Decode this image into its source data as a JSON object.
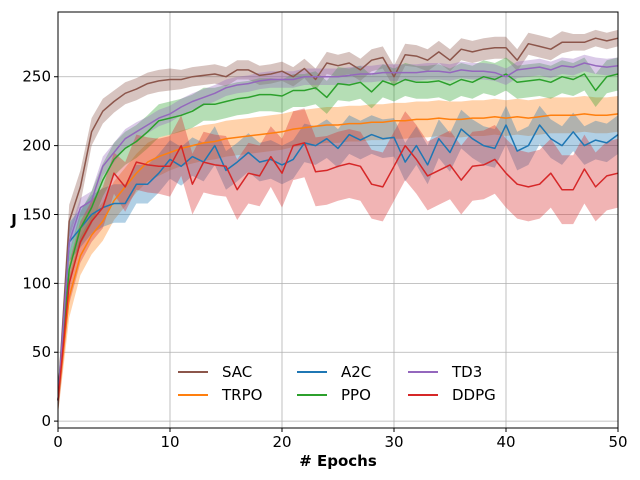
{
  "chart_data": {
    "type": "line",
    "title": "",
    "xlabel": "# Epochs",
    "ylabel": "J",
    "xlim": [
      0,
      50
    ],
    "ylim": [
      -5,
      297
    ],
    "xticks": [
      0,
      10,
      20,
      30,
      40,
      50
    ],
    "yticks": [
      0,
      50,
      100,
      150,
      200,
      250
    ],
    "grid": true,
    "legend": {
      "position": "lower-center",
      "columns": 3
    },
    "x": [
      0,
      1,
      2,
      3,
      4,
      5,
      6,
      7,
      8,
      9,
      10,
      11,
      12,
      13,
      14,
      15,
      16,
      17,
      18,
      19,
      20,
      21,
      22,
      23,
      24,
      25,
      26,
      27,
      28,
      29,
      30,
      31,
      32,
      33,
      34,
      35,
      36,
      37,
      38,
      39,
      40,
      41,
      42,
      43,
      44,
      45,
      46,
      47,
      48,
      49,
      50
    ],
    "series": [
      {
        "name": "SAC",
        "color": "#8c564b",
        "values": [
          15,
          145,
          170,
          210,
          225,
          232,
          238,
          241,
          245,
          247,
          248,
          248,
          250,
          251,
          252,
          250,
          255,
          255,
          251,
          252,
          254,
          250,
          256,
          248,
          260,
          258,
          260,
          255,
          262,
          264,
          250,
          266,
          265,
          262,
          268,
          262,
          270,
          268,
          270,
          271,
          271,
          262,
          274,
          272,
          270,
          275,
          275,
          275,
          278,
          276,
          278
        ],
        "band": [
          10,
          12,
          12,
          10,
          9,
          8,
          8,
          8,
          8,
          8,
          8,
          7,
          7,
          7,
          7,
          7,
          7,
          7,
          7,
          7,
          7,
          7,
          7,
          8,
          8,
          8,
          8,
          8,
          8,
          8,
          8,
          8,
          8,
          8,
          8,
          8,
          8,
          8,
          8,
          8,
          8,
          8,
          8,
          8,
          8,
          8,
          6,
          6,
          6,
          6,
          6
        ]
      },
      {
        "name": "TRPO",
        "color": "#ff7f0e",
        "values": [
          15,
          90,
          120,
          135,
          145,
          160,
          170,
          180,
          188,
          192,
          195,
          198,
          200,
          202,
          203,
          205,
          206,
          207,
          208,
          209,
          210,
          212,
          213,
          214,
          215,
          215,
          216,
          216,
          217,
          217,
          218,
          218,
          219,
          219,
          220,
          219,
          219,
          220,
          220,
          221,
          220,
          221,
          220,
          221,
          222,
          222,
          222,
          223,
          222,
          222,
          223
        ],
        "band": [
          10,
          15,
          14,
          14,
          14,
          14,
          14,
          14,
          14,
          14,
          13,
          13,
          13,
          13,
          13,
          13,
          13,
          13,
          13,
          13,
          13,
          13,
          13,
          13,
          13,
          13,
          13,
          13,
          13,
          13,
          13,
          13,
          13,
          13,
          13,
          13,
          13,
          13,
          13,
          13,
          13,
          13,
          13,
          13,
          13,
          13,
          13,
          13,
          13,
          13,
          13
        ]
      },
      {
        "name": "A2C",
        "color": "#1f77b4",
        "values": [
          15,
          130,
          140,
          150,
          155,
          158,
          158,
          172,
          172,
          180,
          190,
          185,
          192,
          188,
          200,
          182,
          188,
          195,
          188,
          190,
          186,
          190,
          202,
          200,
          205,
          198,
          208,
          204,
          208,
          205,
          206,
          188,
          200,
          186,
          205,
          195,
          212,
          205,
          200,
          198,
          215,
          196,
          200,
          215,
          205,
          200,
          210,
          200,
          204,
          202,
          208
        ],
        "band": [
          10,
          14,
          14,
          14,
          14,
          14,
          14,
          14,
          14,
          14,
          14,
          14,
          14,
          14,
          14,
          14,
          14,
          14,
          14,
          14,
          14,
          14,
          14,
          14,
          14,
          14,
          14,
          14,
          14,
          14,
          14,
          14,
          14,
          14,
          14,
          14,
          14,
          14,
          14,
          14,
          14,
          14,
          14,
          14,
          14,
          14,
          14,
          14,
          14,
          14,
          14
        ]
      },
      {
        "name": "PPO",
        "color": "#2ca02c",
        "values": [
          15,
          110,
          140,
          155,
          175,
          190,
          198,
          203,
          210,
          218,
          220,
          222,
          225,
          230,
          230,
          232,
          234,
          235,
          237,
          237,
          236,
          240,
          240,
          242,
          235,
          245,
          244,
          246,
          239,
          247,
          244,
          248,
          246,
          246,
          247,
          244,
          248,
          246,
          250,
          248,
          252,
          246,
          247,
          248,
          246,
          250,
          248,
          252,
          240,
          250,
          252
        ],
        "band": [
          10,
          12,
          12,
          12,
          12,
          12,
          12,
          12,
          12,
          12,
          12,
          12,
          12,
          12,
          12,
          12,
          12,
          12,
          12,
          12,
          12,
          12,
          12,
          12,
          12,
          12,
          12,
          12,
          12,
          12,
          12,
          12,
          12,
          12,
          12,
          12,
          12,
          12,
          12,
          12,
          12,
          12,
          12,
          12,
          12,
          12,
          12,
          12,
          12,
          12,
          12
        ]
      },
      {
        "name": "TD3",
        "color": "#9467bd",
        "values": [
          15,
          130,
          155,
          160,
          185,
          195,
          205,
          210,
          215,
          220,
          223,
          228,
          232,
          235,
          238,
          242,
          244,
          245,
          247,
          248,
          248,
          248,
          250,
          250,
          250,
          250,
          251,
          252,
          252,
          253,
          253,
          253,
          253,
          254,
          254,
          253,
          255,
          254,
          254,
          253,
          250,
          255,
          256,
          257,
          255,
          258,
          257,
          260,
          258,
          257,
          258
        ],
        "band": [
          10,
          8,
          7,
          7,
          7,
          7,
          7,
          7,
          6,
          6,
          6,
          6,
          6,
          6,
          6,
          6,
          6,
          6,
          6,
          6,
          6,
          6,
          6,
          6,
          6,
          6,
          6,
          6,
          6,
          6,
          6,
          6,
          6,
          6,
          6,
          6,
          6,
          6,
          6,
          6,
          6,
          6,
          6,
          6,
          6,
          6,
          6,
          6,
          6,
          6,
          6
        ]
      },
      {
        "name": "DDPG",
        "color": "#d62728",
        "values": [
          15,
          100,
          130,
          145,
          155,
          180,
          170,
          188,
          186,
          185,
          185,
          200,
          172,
          188,
          186,
          185,
          168,
          180,
          178,
          192,
          180,
          200,
          202,
          181,
          182,
          185,
          187,
          185,
          172,
          170,
          185,
          200,
          190,
          178,
          182,
          186,
          175,
          185,
          186,
          190,
          180,
          172,
          170,
          172,
          180,
          168,
          168,
          183,
          170,
          178,
          180
        ],
        "band": [
          10,
          15,
          15,
          15,
          15,
          15,
          18,
          20,
          20,
          20,
          22,
          22,
          22,
          22,
          22,
          22,
          22,
          22,
          22,
          22,
          25,
          25,
          25,
          25,
          25,
          25,
          25,
          25,
          25,
          25,
          25,
          25,
          25,
          25,
          25,
          25,
          25,
          25,
          25,
          25,
          25,
          25,
          25,
          25,
          25,
          25,
          25,
          25,
          25,
          25,
          25
        ]
      }
    ]
  }
}
